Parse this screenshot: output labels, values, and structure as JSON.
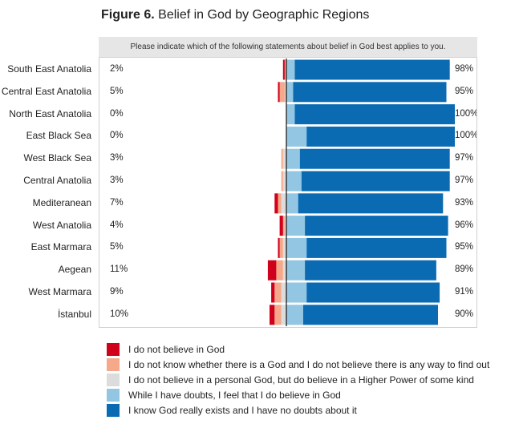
{
  "title": {
    "prefix": "Figure 6.",
    "text": "Belief in God by Geographic Regions"
  },
  "question": "Please indicate which of the following statements about belief in God best applies to you.",
  "colors": [
    "#d0021b",
    "#f5a98a",
    "#dcdcdc",
    "#93c6e2",
    "#0a6bb3"
  ],
  "chart_data": {
    "type": "bar",
    "stacked": "diverging",
    "title": "Belief in God by Geographic Regions",
    "categories": [
      "South East Anatolia",
      "Central East Anatolia",
      "North East Anatolia",
      "East Black Sea",
      "West Black Sea",
      "Central Anatolia",
      "Mediteranean",
      "West Anatolia",
      "East Marmara",
      "Aegean",
      "West Marmara",
      "İstanbul"
    ],
    "left_totals": [
      "2%",
      "5%",
      "0%",
      "0%",
      "3%",
      "3%",
      "7%",
      "4%",
      "5%",
      "11%",
      "9%",
      "10%"
    ],
    "right_totals": [
      "98%",
      "95%",
      "100%",
      "100%",
      "97%",
      "97%",
      "93%",
      "96%",
      "95%",
      "89%",
      "91%",
      "90%"
    ],
    "series": [
      {
        "name": "I do not believe in God",
        "values": [
          1,
          1,
          0,
          0,
          0,
          0,
          2,
          2,
          1,
          5,
          2,
          3
        ]
      },
      {
        "name": "I do not know whether there is a God and I do not believe there is any way to find out",
        "values": [
          1,
          3,
          0,
          0,
          1,
          1,
          2,
          1,
          2,
          4,
          4,
          4
        ]
      },
      {
        "name": "I do not believe in a personal God, but do believe in a Higher Power of some kind",
        "values": [
          0,
          1,
          0,
          0,
          2,
          2,
          3,
          1,
          2,
          2,
          3,
          3
        ]
      },
      {
        "name": "While I have doubts, I feel that I do believe in God",
        "values": [
          5,
          4,
          5,
          12,
          8,
          9,
          7,
          11,
          12,
          11,
          12,
          10
        ]
      },
      {
        "name": "I know God really exists and I have no doubts about it",
        "values": [
          92,
          91,
          95,
          88,
          89,
          88,
          86,
          85,
          83,
          78,
          79,
          80
        ]
      }
    ],
    "legend_position": "bottom"
  }
}
